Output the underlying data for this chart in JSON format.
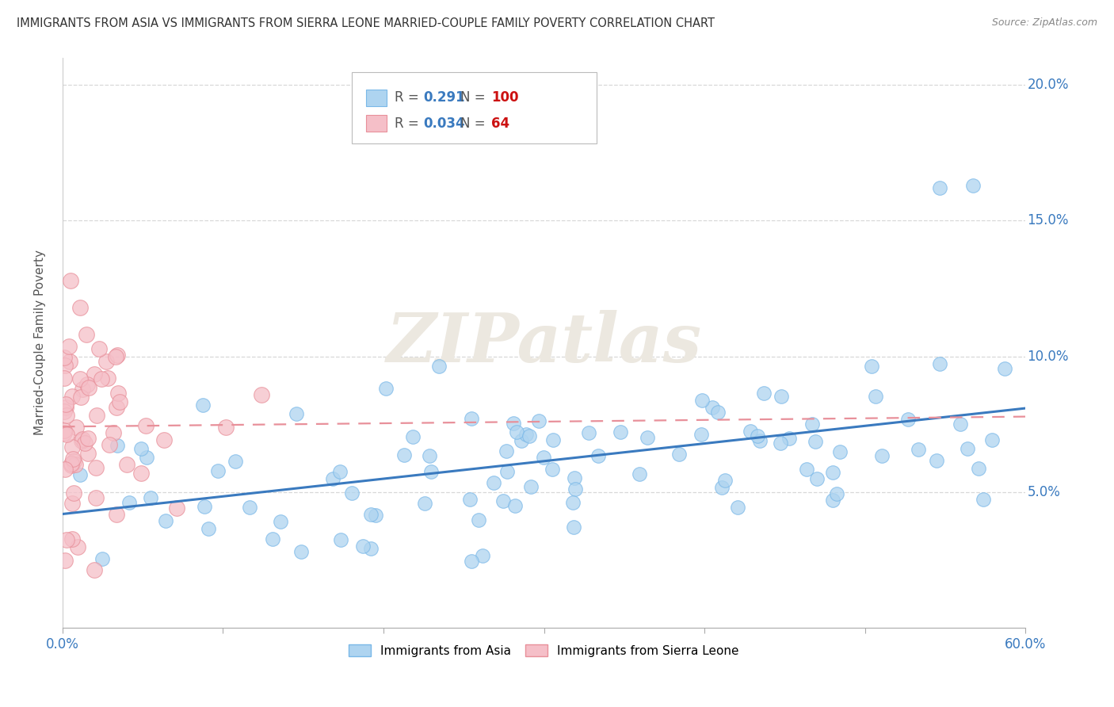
{
  "title": "IMMIGRANTS FROM ASIA VS IMMIGRANTS FROM SIERRA LEONE MARRIED-COUPLE FAMILY POVERTY CORRELATION CHART",
  "source": "Source: ZipAtlas.com",
  "ylabel": "Married-Couple Family Poverty",
  "xlim": [
    0.0,
    0.6
  ],
  "ylim": [
    0.0,
    0.21
  ],
  "yticks": [
    0.05,
    0.1,
    0.15,
    0.2
  ],
  "ytick_labels": [
    "5.0%",
    "10.0%",
    "15.0%",
    "20.0%"
  ],
  "asia_color_edge": "#7ab8e8",
  "asia_color_fill": "#aed4f0",
  "sierra_color_edge": "#e8909a",
  "sierra_color_fill": "#f5bfc8",
  "legend_asia_label": "Immigrants from Asia",
  "legend_sierra_label": "Immigrants from Sierra Leone",
  "asia_R": 0.291,
  "asia_N": 100,
  "sierra_R": 0.034,
  "sierra_N": 64,
  "watermark": "ZIPatlas",
  "background_color": "#ffffff",
  "asia_trend_color": "#3a7abf",
  "sierra_trend_color": "#e8909a",
  "grid_color": "#d8d8d8"
}
